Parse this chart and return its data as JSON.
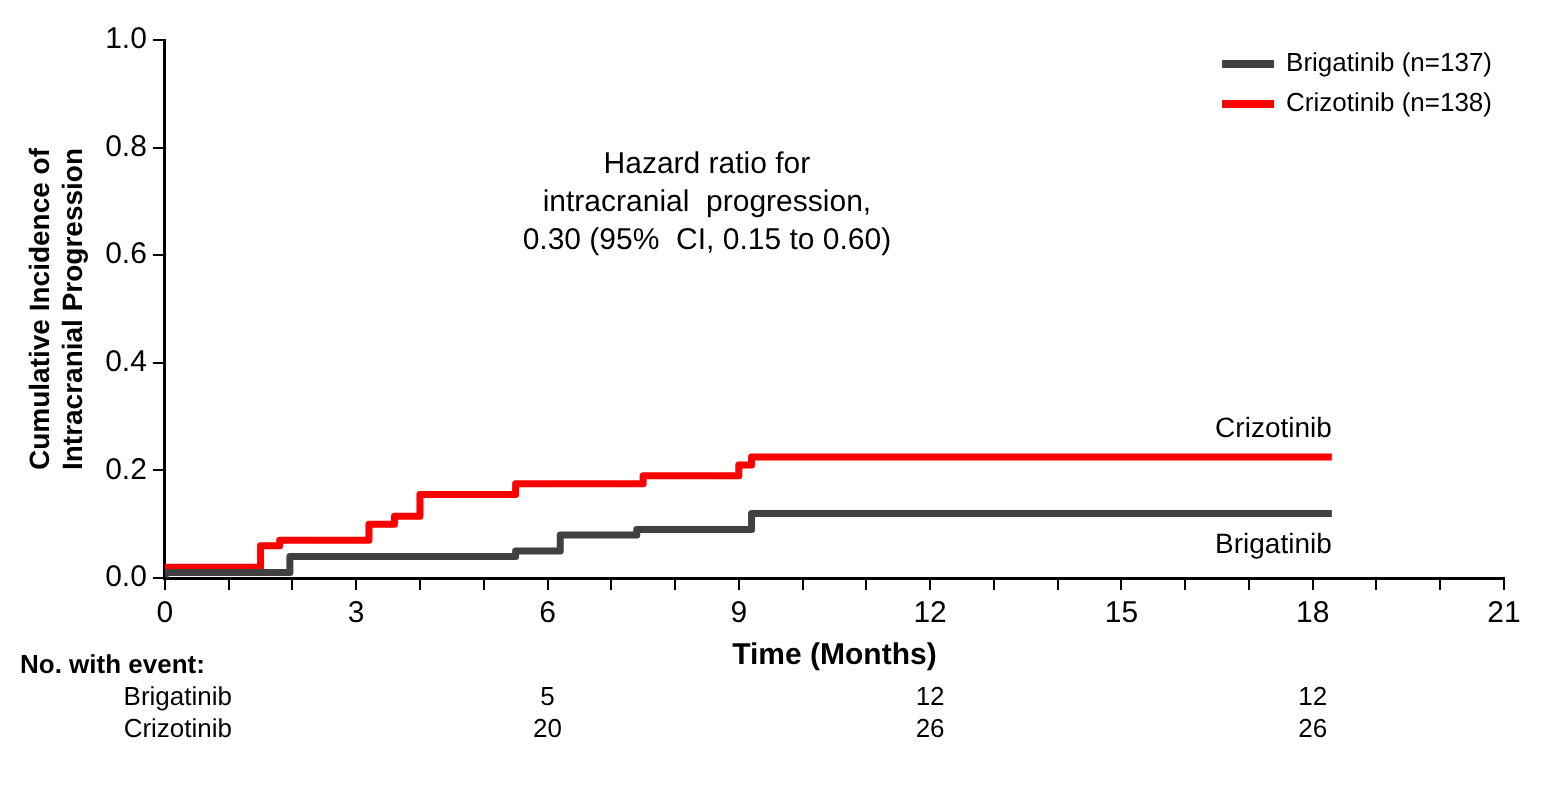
{
  "chart_data": {
    "type": "step",
    "ylabel": "Cumulative Incidence of\nIntracranial Progression",
    "xlabel": "Time (Months)",
    "xlim": [
      0,
      21
    ],
    "ylim": [
      0,
      1
    ],
    "xticks": [
      0,
      {
        "value": 1,
        "label": null
      },
      {
        "value": 2,
        "label": null
      },
      3,
      {
        "value": 4,
        "label": null
      },
      {
        "value": 5,
        "label": null
      },
      6,
      {
        "value": 7,
        "label": null
      },
      {
        "value": 8,
        "label": null
      },
      9,
      {
        "value": 10,
        "label": null
      },
      {
        "value": 11,
        "label": null
      },
      12,
      {
        "value": 13,
        "label": null
      },
      {
        "value": 14,
        "label": null
      },
      15,
      {
        "value": 16,
        "label": null
      },
      {
        "value": 17,
        "label": null
      },
      18,
      {
        "value": 19,
        "label": null
      },
      {
        "value": 20,
        "label": null
      },
      21
    ],
    "yticks": [
      {
        "value": 0,
        "label": "0.0"
      },
      {
        "value": 0.2,
        "label": "0.2"
      },
      {
        "value": 0.4,
        "label": "0.4"
      },
      {
        "value": 0.6,
        "label": "0.6"
      },
      {
        "value": 0.8,
        "label": "0.8"
      },
      {
        "value": 1,
        "label": "1.0"
      }
    ],
    "series": [
      {
        "name": "Brigatinib (n=137)",
        "color": "#404040",
        "x": [
          0,
          1.96,
          5.5,
          6.2,
          7.4,
          9.2,
          11.0,
          18.3
        ],
        "values": [
          0,
          0.01,
          0.04,
          0.05,
          0.08,
          0.09,
          0.12,
          0.12
        ]
      },
      {
        "name": "Crizotinib (n=138)",
        "color": "#ff0000",
        "x": [
          0,
          1.5,
          1.8,
          3.2,
          3.6,
          4.0,
          5.5,
          7.5,
          9.0,
          9.2,
          11.0,
          18.3
        ],
        "values": [
          0,
          0.02,
          0.06,
          0.07,
          0.1,
          0.115,
          0.155,
          0.175,
          0.19,
          0.21,
          0.225,
          0.225
        ]
      }
    ],
    "legend": "top right",
    "grid": false,
    "line_style": "solid",
    "marker": "none",
    "annotations": [
      "Hazard ratio for\nintracranial  progression,\n0.30 (95%  CI, 0.15 to 0.60)",
      "No. with event:",
      "Brigatinib",
      "5",
      "12",
      "12",
      "Crizotinib",
      "20",
      "26",
      "26",
      "Crizotinib",
      "Brigatinib"
    ]
  }
}
